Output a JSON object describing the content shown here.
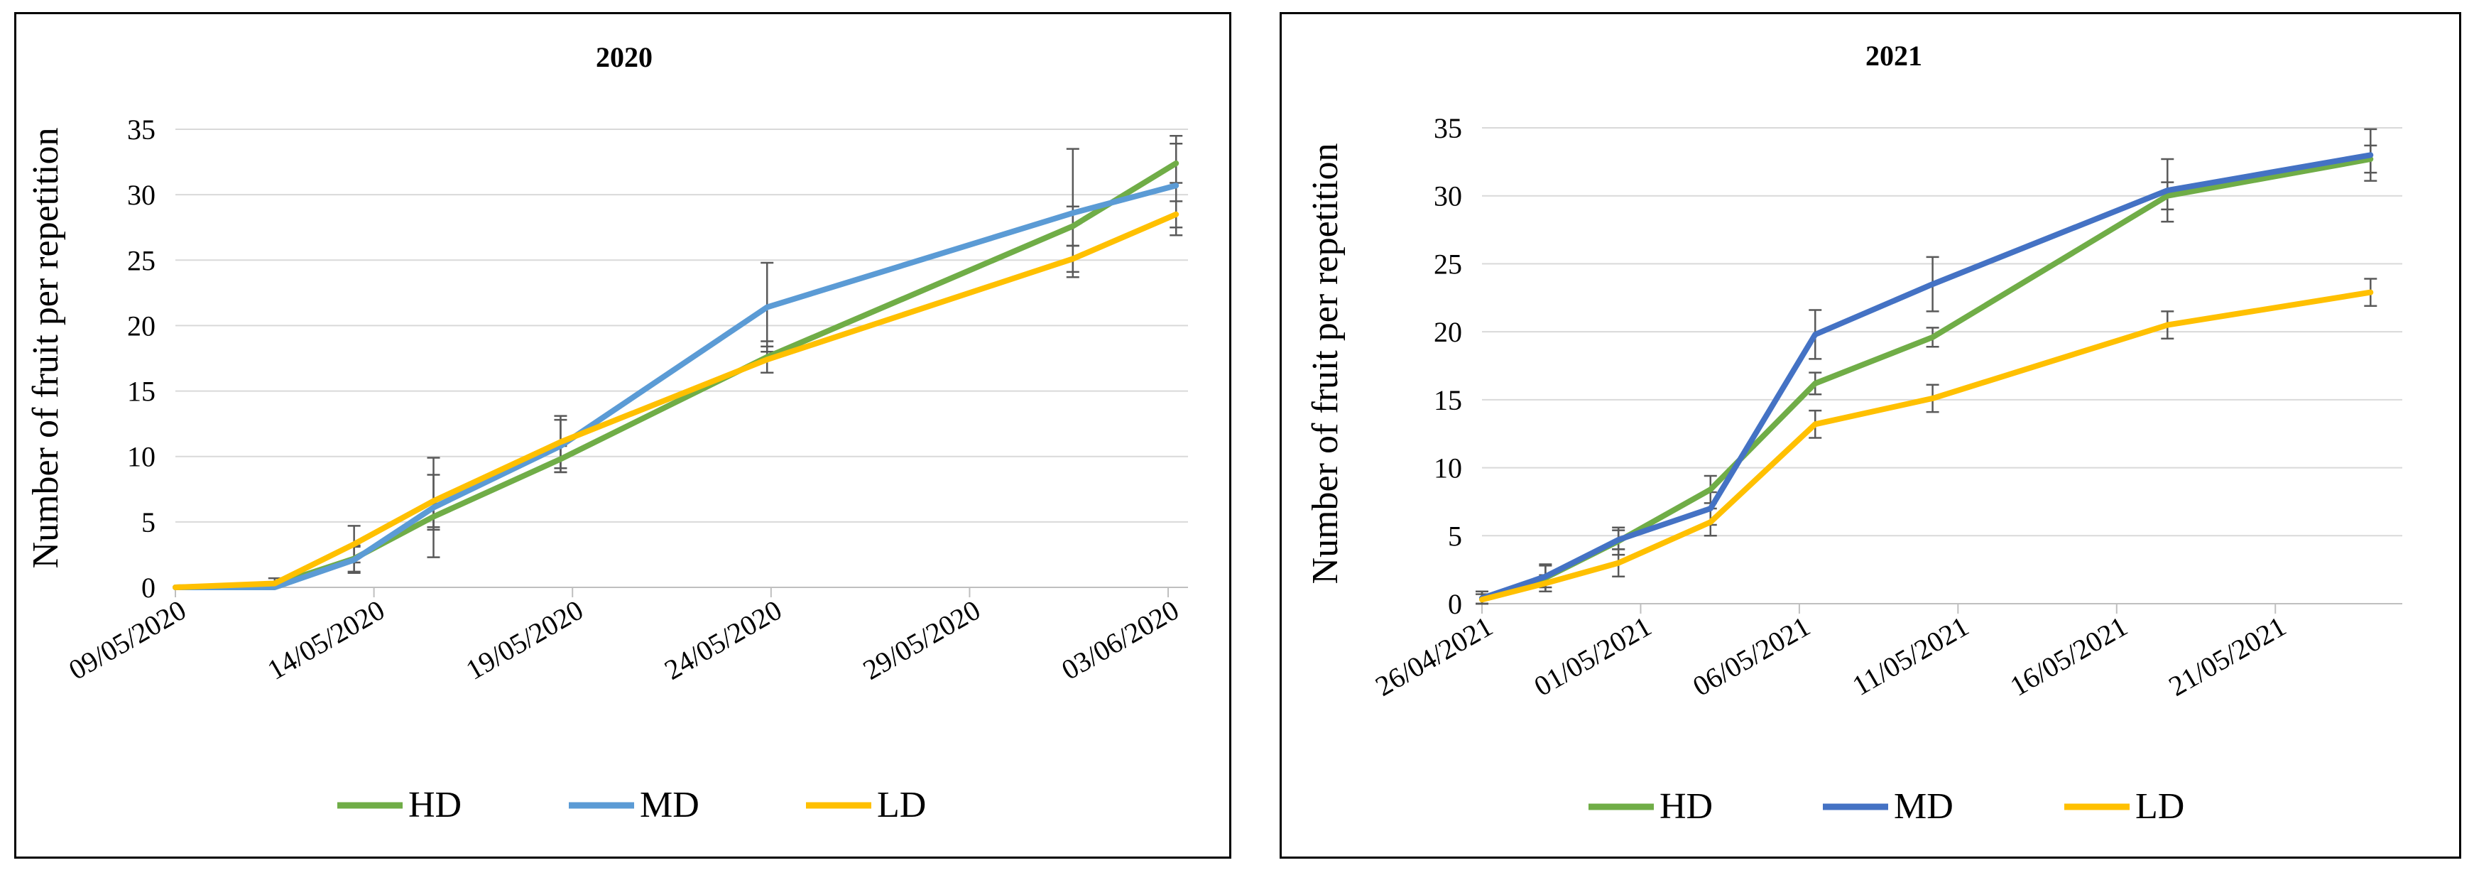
{
  "chart_data": [
    {
      "type": "line",
      "title": "2020",
      "xlabel": "",
      "ylabel": "Number of fruit per repetition",
      "ylim": [
        0,
        35
      ],
      "yticks": [
        0,
        5,
        10,
        15,
        20,
        25,
        30,
        35
      ],
      "x_range_days": [
        0,
        25.5
      ],
      "x_tick_days": [
        0,
        5,
        10,
        15,
        20,
        25
      ],
      "x_tick_labels": [
        "09/05/2020",
        "14/05/2020",
        "19/05/2020",
        "24/05/2020",
        "29/05/2020",
        "03/06/2020"
      ],
      "legend": "bottom",
      "grid": true,
      "series": [
        {
          "name": "HD",
          "color": "#70AD47",
          "x": [
            0,
            2.5,
            4.5,
            6.5,
            9.7,
            14.9,
            22.6,
            25.2
          ],
          "values": [
            0,
            0.2,
            2.2,
            5.4,
            9.8,
            17.6,
            27.6,
            32.4
          ],
          "err": [
            0,
            0,
            1.0,
            1.0,
            1.0,
            1.2,
            1.5,
            1.5
          ]
        },
        {
          "name": "MD",
          "color": "#5B9BD5",
          "x": [
            0,
            2.5,
            4.5,
            6.5,
            9.7,
            14.9,
            22.6,
            25.2
          ],
          "values": [
            0,
            0,
            2.1,
            6.1,
            10.8,
            21.4,
            28.6,
            30.7
          ],
          "err": [
            0,
            0,
            1.0,
            3.8,
            2.0,
            3.4,
            4.9,
            3.8
          ]
        },
        {
          "name": "LD",
          "color": "#FFC000",
          "x": [
            0,
            2.5,
            4.5,
            6.5,
            9.7,
            14.9,
            22.6,
            25.2
          ],
          "values": [
            0,
            0.3,
            3.3,
            6.6,
            11.1,
            17.4,
            25.1,
            28.5
          ],
          "err": [
            0,
            0.4,
            1.4,
            2.0,
            2.0,
            1.0,
            1.0,
            1.0
          ]
        }
      ]
    },
    {
      "type": "line",
      "title": "2021",
      "xlabel": "",
      "ylabel": "Number of fruit per repetition",
      "ylim": [
        0,
        35
      ],
      "yticks": [
        0,
        5,
        10,
        15,
        20,
        25,
        30,
        35
      ],
      "x_range_days": [
        0,
        29
      ],
      "x_tick_days": [
        0,
        5,
        10,
        15,
        20,
        25
      ],
      "x_tick_labels": [
        "26/04/2021",
        "01/05/2021",
        "06/05/2021",
        "11/05/2021",
        "16/05/2021",
        "21/05/2021"
      ],
      "legend": "bottom",
      "grid": true,
      "series": [
        {
          "name": "HD",
          "color": "#70AD47",
          "x": [
            0,
            2,
            4.3,
            7.2,
            10.5,
            14.2,
            21.6,
            28
          ],
          "values": [
            0.4,
            1.9,
            4.6,
            8.4,
            16.2,
            19.6,
            30.0,
            32.7
          ],
          "err": [
            0.5,
            1.0,
            1.0,
            1.0,
            0.8,
            0.7,
            1.0,
            1.0
          ]
        },
        {
          "name": "MD",
          "color": "#4472C4",
          "x": [
            0,
            2,
            4.3,
            7.2,
            10.5,
            14.2,
            21.6,
            28
          ],
          "values": [
            0.4,
            2.0,
            4.7,
            7.0,
            19.8,
            23.5,
            30.4,
            33.0
          ],
          "err": [
            0.5,
            0.8,
            0.7,
            1.2,
            1.8,
            2.0,
            2.3,
            1.9
          ]
        },
        {
          "name": "LD",
          "color": "#FFC000",
          "x": [
            0,
            2,
            4.3,
            7.2,
            10.5,
            14.2,
            21.6,
            28
          ],
          "values": [
            0.3,
            1.5,
            3.0,
            6.0,
            13.2,
            15.1,
            20.5,
            22.9
          ],
          "err": [
            0.4,
            0.6,
            1.0,
            1.0,
            1.0,
            1.0,
            1.0,
            1.0
          ]
        }
      ]
    }
  ]
}
